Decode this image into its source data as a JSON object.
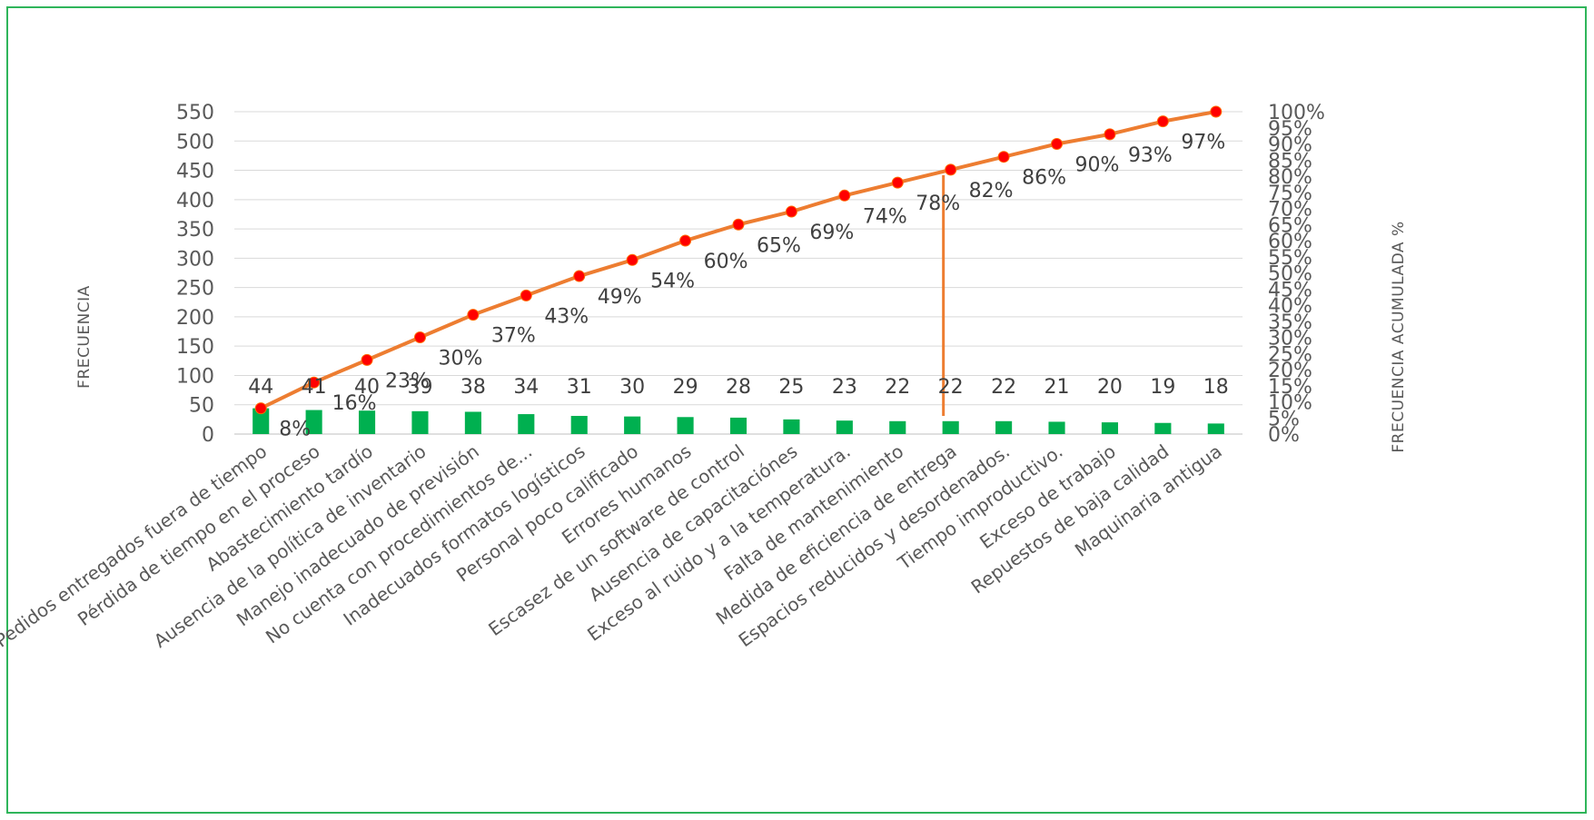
{
  "chart_data": {
    "type": "bar",
    "title": "",
    "ylabel": "FRECUENCIA",
    "y2label": "FRECUENCIA ACUMULADA %",
    "ylim": [
      0,
      550
    ],
    "y_ticks": [
      0,
      50,
      100,
      150,
      200,
      250,
      300,
      350,
      400,
      450,
      500,
      550
    ],
    "y2lim": [
      0,
      1
    ],
    "y2_ticks": [
      "0%",
      "5%",
      "10%",
      "15%",
      "20%",
      "25%",
      "30%",
      "35%",
      "40%",
      "45%",
      "50%",
      "55%",
      "60%",
      "65%",
      "70%",
      "75%",
      "80%",
      "85%",
      "90%",
      "95%",
      "100%"
    ],
    "grid": true,
    "legend": "none",
    "categories": [
      "Pedidos entregados fuera de tiempo",
      "Pérdida de tiempo en el proceso",
      "Abastecimiento tardío",
      "Ausencia de la política de inventario",
      "Manejo inadecuado de previsión",
      "No cuenta con procedimientos de...",
      "Inadecuados formatos logísticos",
      "Personal poco calificado",
      "Errores humanos",
      "Escasez de un software de control",
      "Ausencia de capacitaciónes",
      "Exceso al ruido y a la temperatura.",
      "Falta de mantenimiento",
      "Medida de eficiencia de entrega",
      "Espacios reducidos y desordenados.",
      "Tiempo improductivo.",
      "Exceso de trabajo",
      "Repuestos de baja calidad",
      "Maquinaria antigua"
    ],
    "series": [
      {
        "type": "bar",
        "values": [
          44,
          41,
          40,
          39,
          38,
          34,
          31,
          30,
          29,
          28,
          25,
          23,
          22,
          22,
          22,
          21,
          20,
          19,
          18
        ],
        "labels": [
          "44",
          "41",
          "40",
          "39",
          "38",
          "34",
          "31",
          "30",
          "29",
          "28",
          "25",
          "23",
          "22",
          "22",
          "22",
          "21",
          "20",
          "19",
          "18"
        ],
        "color": "#00B050"
      },
      {
        "type": "line",
        "axis": "secondary",
        "values": [
          0.08,
          0.16,
          0.23,
          0.3,
          0.37,
          0.43,
          0.49,
          0.54,
          0.6,
          0.65,
          0.69,
          0.74,
          0.78,
          0.82,
          0.86,
          0.9,
          0.93,
          0.97,
          1.0
        ],
        "labels": [
          "8%",
          "16%",
          "23%",
          "30%",
          "37%",
          "43%",
          "49%",
          "54%",
          "60%",
          "65%",
          "69%",
          "74%",
          "78%",
          "82%",
          "86%",
          "90%",
          "93%",
          "97%",
          ""
        ],
        "color": "#ED7D31",
        "marker_color": "#FF0000"
      }
    ],
    "cutoff_line": {
      "category_index": 13,
      "color": "#ED7D31"
    }
  }
}
